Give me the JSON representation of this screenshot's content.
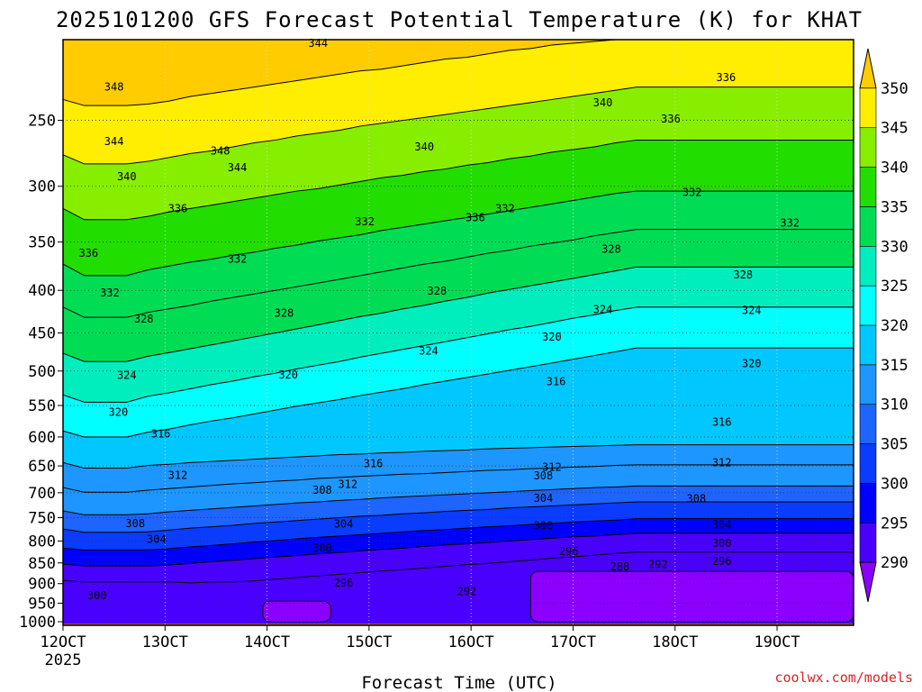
{
  "title": "2025101200 GFS Forecast Potential Temperature (K) for KHAT",
  "xlabel": "Forecast Time (UTC)",
  "credit": "coolwx.com/models",
  "chart_data": {
    "type": "heatmap",
    "title": "2025101200 GFS Forecast Potential Temperature (K) for KHAT",
    "xlabel": "Forecast Time (UTC)",
    "ylabel": "",
    "x_ticks": [
      "12OCT",
      "13OCT",
      "14OCT",
      "15OCT",
      "16OCT",
      "17OCT",
      "18OCT",
      "19OCT"
    ],
    "x_tick_year": "2025",
    "x_values_hours": [
      0,
      24,
      48,
      72,
      96,
      120,
      144,
      168
    ],
    "xlim_hours": [
      0,
      186
    ],
    "y_ticks": [
      250,
      300,
      350,
      400,
      450,
      500,
      550,
      600,
      650,
      700,
      750,
      800,
      850,
      900,
      950,
      1000
    ],
    "ylim_hPa": [
      200,
      1010
    ],
    "y_scale": "log",
    "colorbar": {
      "levels": [
        290,
        295,
        300,
        305,
        310,
        315,
        320,
        325,
        330,
        335,
        340,
        345,
        350
      ],
      "colors": [
        "#8c00ff",
        "#4a00ff",
        "#0000ff",
        "#0a3cff",
        "#1e64ff",
        "#1e96ff",
        "#00c8ff",
        "#00ffff",
        "#00eebe",
        "#00dd55",
        "#22dd00",
        "#88ee00",
        "#ffee00",
        "#ffcc00"
      ],
      "extend": "both"
    },
    "series": [
      {
        "name": "292",
        "values": [
          892,
          896,
          896,
          896,
          896,
          896,
          898,
          896,
          896,
          893,
          889,
          885,
          881,
          877,
          873,
          869,
          866,
          862,
          858,
          854,
          851,
          847,
          843,
          839,
          836,
          832,
          828,
          825,
          825,
          825,
          825,
          825,
          825,
          825,
          825,
          825,
          825,
          825
        ]
      },
      {
        "name": "296",
        "values": [
          853,
          857,
          857,
          857,
          857,
          855,
          851,
          847,
          844,
          840,
          836,
          833,
          829,
          826,
          822,
          819,
          816,
          812,
          809,
          806,
          803,
          800,
          797,
          794,
          791,
          789,
          786,
          783,
          783,
          783,
          783,
          783,
          783,
          783,
          783,
          783,
          783,
          783
        ]
      },
      {
        "name": "300",
        "values": [
          816,
          820,
          820,
          820,
          820,
          817,
          813,
          810,
          806,
          802,
          799,
          795,
          792,
          789,
          786,
          783,
          780,
          777,
          775,
          772,
          769,
          767,
          764,
          762,
          759,
          757,
          755,
          752,
          752,
          752,
          752,
          752,
          752,
          752,
          752,
          752,
          752,
          752
        ]
      },
      {
        "name": "304",
        "values": [
          774,
          781,
          781,
          781,
          780,
          776,
          772,
          769,
          766,
          762,
          759,
          756,
          753,
          750,
          747,
          745,
          742,
          740,
          737,
          735,
          733,
          730,
          728,
          726,
          724,
          722,
          720,
          718,
          718,
          718,
          718,
          718,
          718,
          718,
          718,
          718,
          718,
          718
        ]
      },
      {
        "name": "308",
        "values": [
          736,
          744,
          744,
          744,
          742,
          738,
          735,
          732,
          729,
          726,
          723,
          720,
          718,
          715,
          713,
          710,
          708,
          706,
          704,
          702,
          700,
          698,
          696,
          694,
          692,
          690,
          689,
          687,
          687,
          687,
          687,
          687,
          687,
          687,
          687,
          687,
          687,
          687
        ]
      },
      {
        "name": "312",
        "values": [
          690,
          699,
          699,
          699,
          695,
          692,
          689,
          686,
          683,
          681,
          678,
          676,
          673,
          671,
          669,
          667,
          665,
          664,
          662,
          660,
          658,
          657,
          655,
          654,
          652,
          651,
          649,
          648,
          648,
          648,
          648,
          648,
          648,
          648,
          648,
          648,
          648,
          648
        ]
      },
      {
        "name": "316",
        "values": [
          644,
          654,
          654,
          654,
          649,
          647,
          644,
          642,
          640,
          638,
          636,
          634,
          632,
          630,
          629,
          627,
          626,
          624,
          623,
          622,
          620,
          619,
          618,
          617,
          616,
          615,
          614,
          613,
          613,
          613,
          613,
          613,
          613,
          613,
          613,
          613,
          613,
          613
        ]
      },
      {
        "name": "320",
        "values": [
          590,
          600,
          600,
          600,
          592,
          587,
          580,
          574,
          569,
          563,
          557,
          551,
          546,
          541,
          535,
          530,
          525,
          519,
          514,
          509,
          504,
          499,
          494,
          489,
          484,
          479,
          474,
          469,
          469,
          469,
          469,
          469,
          469,
          469,
          469,
          469,
          469,
          469
        ]
      },
      {
        "name": "324",
        "values": [
          534,
          545,
          545,
          545,
          536,
          531,
          525,
          519,
          514,
          508,
          503,
          497,
          492,
          487,
          481,
          476,
          471,
          466,
          461,
          456,
          451,
          446,
          442,
          437,
          432,
          428,
          423,
          419,
          419,
          419,
          419,
          419,
          419,
          419,
          419,
          419,
          419,
          419
        ]
      },
      {
        "name": "328",
        "values": [
          476,
          487,
          487,
          487,
          480,
          475,
          470,
          465,
          460,
          455,
          450,
          445,
          440,
          435,
          430,
          426,
          421,
          417,
          412,
          408,
          403,
          399,
          395,
          391,
          387,
          383,
          379,
          375,
          375,
          375,
          375,
          375,
          375,
          375,
          375,
          375,
          375,
          375
        ]
      },
      {
        "name": "332",
        "values": [
          419,
          431,
          431,
          431,
          425,
          421,
          417,
          412,
          408,
          404,
          400,
          396,
          392,
          388,
          384,
          380,
          376,
          372,
          369,
          365,
          361,
          358,
          354,
          351,
          348,
          344,
          341,
          338,
          338,
          338,
          338,
          338,
          338,
          338,
          338,
          338,
          338,
          338
        ]
      },
      {
        "name": "336",
        "values": [
          372,
          384,
          384,
          384,
          378,
          374,
          370,
          367,
          363,
          360,
          356,
          353,
          349,
          346,
          343,
          339,
          336,
          333,
          330,
          327,
          324,
          321,
          318,
          315,
          312,
          309,
          306,
          304,
          304,
          304,
          304,
          304,
          304,
          304,
          304,
          304,
          304,
          304
        ]
      },
      {
        "name": "340",
        "values": [
          319,
          329,
          329,
          329,
          326,
          322,
          319,
          316,
          313,
          310,
          307,
          304,
          302,
          299,
          296,
          293,
          291,
          288,
          286,
          283,
          281,
          278,
          276,
          273,
          271,
          269,
          266,
          264,
          264,
          264,
          264,
          264,
          264,
          264,
          264,
          264,
          264,
          264
        ]
      },
      {
        "name": "344",
        "values": [
          275,
          282,
          282,
          282,
          280,
          277,
          274,
          272,
          269,
          266,
          264,
          261,
          259,
          257,
          254,
          252,
          250,
          248,
          246,
          244,
          242,
          240,
          238,
          236,
          234,
          232,
          230,
          228,
          228,
          228,
          228,
          228,
          228,
          228,
          228,
          228,
          228,
          228
        ]
      },
      {
        "name": "348",
        "values": [
          236,
          240,
          240,
          240,
          239,
          237,
          234,
          232,
          230,
          228,
          226,
          224,
          222,
          220,
          218,
          217,
          215,
          213,
          211,
          210,
          208,
          206,
          205,
          203,
          202,
          201,
          200,
          200,
          200,
          200,
          200,
          200,
          200,
          200,
          200,
          200,
          200,
          200
        ]
      }
    ],
    "x_hours_for_series": [
      0,
      5,
      10,
      15,
      20,
      25,
      30,
      35,
      40,
      45,
      50,
      55,
      60,
      65,
      70,
      75,
      80,
      85,
      90,
      95,
      100,
      105,
      110,
      115,
      120,
      125,
      130,
      135,
      140,
      145,
      150,
      155,
      160,
      165,
      170,
      175,
      180,
      186
    ],
    "contour_labels": [
      {
        "text": "348",
        "x_hours": 12,
        "p_hPa": 228
      },
      {
        "text": "344",
        "x_hours": 60,
        "p_hPa": 202
      },
      {
        "text": "344",
        "x_hours": 12,
        "p_hPa": 265
      },
      {
        "text": "340",
        "x_hours": 127,
        "p_hPa": 238
      },
      {
        "text": "336",
        "x_hours": 156,
        "p_hPa": 222
      },
      {
        "text": "336",
        "x_hours": 143,
        "p_hPa": 249
      },
      {
        "text": "348",
        "x_hours": 37,
        "p_hPa": 272
      },
      {
        "text": "340",
        "x_hours": 85,
        "p_hPa": 269
      },
      {
        "text": "344",
        "x_hours": 41,
        "p_hPa": 285
      },
      {
        "text": "340",
        "x_hours": 15,
        "p_hPa": 292
      },
      {
        "text": "336",
        "x_hours": 27,
        "p_hPa": 319
      },
      {
        "text": "332",
        "x_hours": 148,
        "p_hPa": 305
      },
      {
        "text": "332",
        "x_hours": 171,
        "p_hPa": 332
      },
      {
        "text": "336",
        "x_hours": 97,
        "p_hPa": 327
      },
      {
        "text": "332",
        "x_hours": 104,
        "p_hPa": 319
      },
      {
        "text": "332",
        "x_hours": 71,
        "p_hPa": 331
      },
      {
        "text": "336",
        "x_hours": 6,
        "p_hPa": 361
      },
      {
        "text": "332",
        "x_hours": 41,
        "p_hPa": 367
      },
      {
        "text": "328",
        "x_hours": 129,
        "p_hPa": 357
      },
      {
        "text": "328",
        "x_hours": 160,
        "p_hPa": 383
      },
      {
        "text": "332",
        "x_hours": 11,
        "p_hPa": 403
      },
      {
        "text": "328",
        "x_hours": 88,
        "p_hPa": 401
      },
      {
        "text": "328",
        "x_hours": 52,
        "p_hPa": 426
      },
      {
        "text": "328",
        "x_hours": 19,
        "p_hPa": 433
      },
      {
        "text": "324",
        "x_hours": 127,
        "p_hPa": 422
      },
      {
        "text": "324",
        "x_hours": 162,
        "p_hPa": 423
      },
      {
        "text": "320",
        "x_hours": 115,
        "p_hPa": 455
      },
      {
        "text": "324",
        "x_hours": 86,
        "p_hPa": 473
      },
      {
        "text": "320",
        "x_hours": 162,
        "p_hPa": 490
      },
      {
        "text": "324",
        "x_hours": 15,
        "p_hPa": 506
      },
      {
        "text": "320",
        "x_hours": 53,
        "p_hPa": 505
      },
      {
        "text": "316",
        "x_hours": 116,
        "p_hPa": 515
      },
      {
        "text": "320",
        "x_hours": 13,
        "p_hPa": 560
      },
      {
        "text": "316",
        "x_hours": 155,
        "p_hPa": 576
      },
      {
        "text": "316",
        "x_hours": 23,
        "p_hPa": 595
      },
      {
        "text": "316",
        "x_hours": 73,
        "p_hPa": 646
      },
      {
        "text": "312",
        "x_hours": 115,
        "p_hPa": 652
      },
      {
        "text": "312",
        "x_hours": 155,
        "p_hPa": 644
      },
      {
        "text": "312",
        "x_hours": 27,
        "p_hPa": 667
      },
      {
        "text": "312",
        "x_hours": 67,
        "p_hPa": 684
      },
      {
        "text": "308",
        "x_hours": 61,
        "p_hPa": 695
      },
      {
        "text": "308",
        "x_hours": 113,
        "p_hPa": 668
      },
      {
        "text": "304",
        "x_hours": 113,
        "p_hPa": 711
      },
      {
        "text": "308",
        "x_hours": 149,
        "p_hPa": 712
      },
      {
        "text": "308",
        "x_hours": 17,
        "p_hPa": 762
      },
      {
        "text": "304",
        "x_hours": 66,
        "p_hPa": 763
      },
      {
        "text": "304",
        "x_hours": 155,
        "p_hPa": 765
      },
      {
        "text": "300",
        "x_hours": 113,
        "p_hPa": 767
      },
      {
        "text": "304",
        "x_hours": 22,
        "p_hPa": 796
      },
      {
        "text": "300",
        "x_hours": 61,
        "p_hPa": 816
      },
      {
        "text": "300",
        "x_hours": 155,
        "p_hPa": 805
      },
      {
        "text": "296",
        "x_hours": 119,
        "p_hPa": 823
      },
      {
        "text": "296",
        "x_hours": 155,
        "p_hPa": 846
      },
      {
        "text": "292",
        "x_hours": 140,
        "p_hPa": 854
      },
      {
        "text": "288",
        "x_hours": 131,
        "p_hPa": 859
      },
      {
        "text": "296",
        "x_hours": 66,
        "p_hPa": 898
      },
      {
        "text": "292",
        "x_hours": 95,
        "p_hPa": 920
      },
      {
        "text": "300",
        "x_hours": 8,
        "p_hPa": 930
      }
    ],
    "cold_pools": [
      {
        "x_hours": [
          47,
          63
        ],
        "p_hPa": [
          945,
          1000
        ],
        "color": "#8c00ff"
      },
      {
        "x_hours": [
          110,
          186
        ],
        "p_hPa": [
          870,
          1000
        ],
        "color": "#8c00ff"
      }
    ],
    "legend": "right"
  }
}
